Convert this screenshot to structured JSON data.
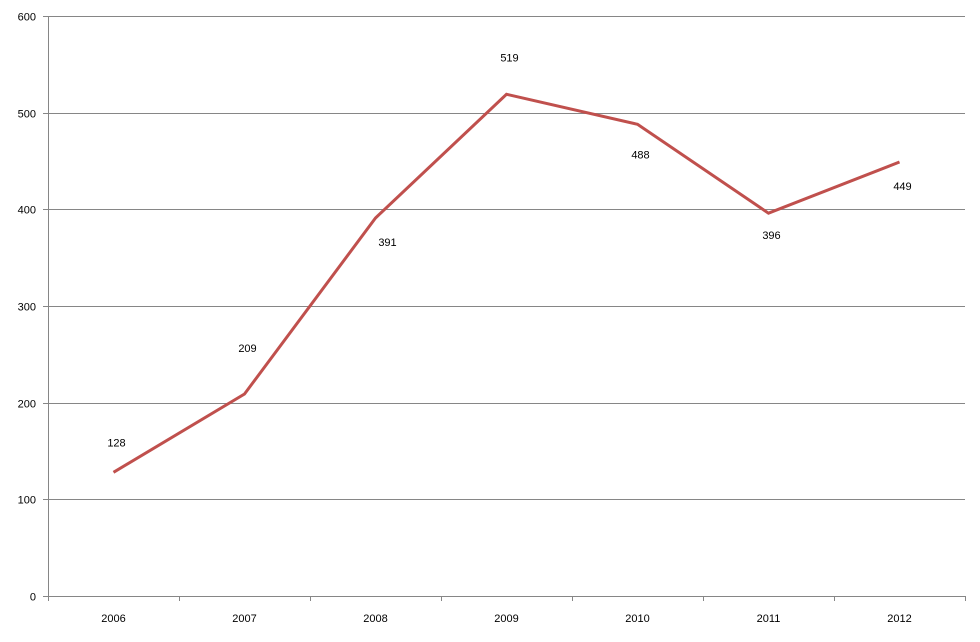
{
  "chart_data": {
    "type": "line",
    "title": "",
    "xlabel": "",
    "ylabel": "",
    "categories": [
      "2006",
      "2007",
      "2008",
      "2009",
      "2010",
      "2011",
      "2012"
    ],
    "series": [
      {
        "values": [
          128,
          209,
          391,
          519,
          488,
          396,
          449
        ],
        "color": "#c0504d"
      }
    ],
    "ylim": [
      0,
      600
    ],
    "yticks": [
      0,
      100,
      200,
      300,
      400,
      500,
      600
    ],
    "grid": true,
    "legend": "none",
    "data_labels": [
      "128",
      "209",
      "391",
      "519",
      "488",
      "396",
      "449"
    ]
  }
}
